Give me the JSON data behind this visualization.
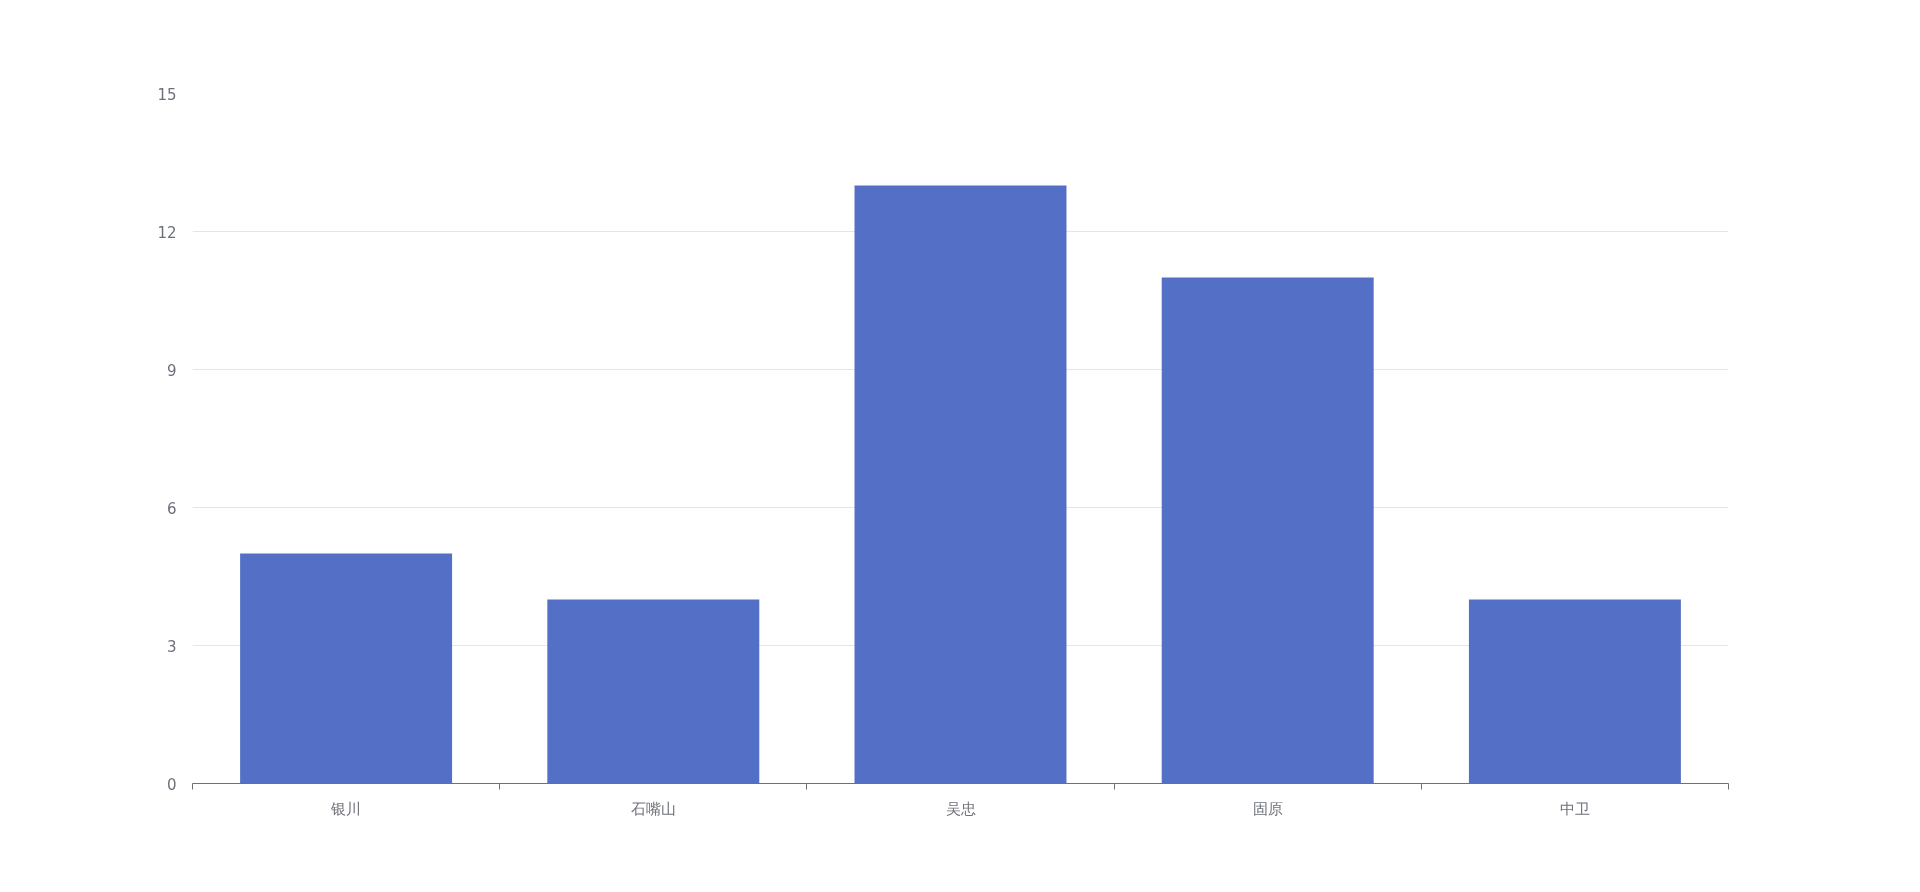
{
  "chart_data": {
    "type": "bar",
    "categories": [
      "银川",
      "石嘴山",
      "吴忠",
      "固原",
      "中卫"
    ],
    "values": [
      5,
      4,
      13,
      11,
      4
    ],
    "color": "#5470c6",
    "ylim": [
      0,
      15
    ],
    "yticks": [
      0,
      3,
      6,
      9,
      12,
      15
    ],
    "grid": "y"
  }
}
